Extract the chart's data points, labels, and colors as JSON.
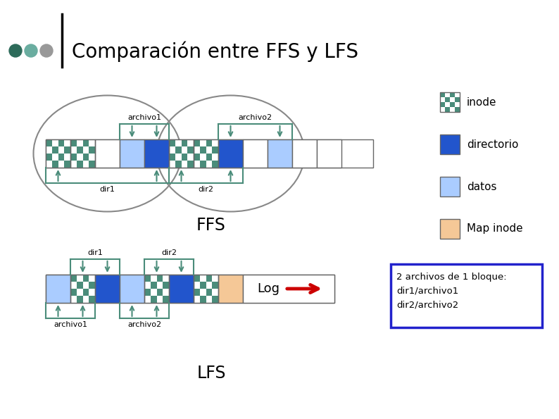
{
  "title": "Comparación entre FFS y LFS",
  "bg_color": "#ffffff",
  "title_color": "#000000",
  "title_fontsize": 20,
  "inode_c1": "#4a8c7a",
  "inode_c2": "#ffffff",
  "dir_color": "#2255cc",
  "datos_color": "#aaccff",
  "mapinode_color": "#f5c897",
  "bracket_color": "#4a8c7a",
  "ellipse_color": "#888888",
  "arrow_color": "#cc0000",
  "legend_items": [
    "inode",
    "directorio",
    "datos",
    "Map inode"
  ],
  "ffs_label": "FFS",
  "lfs_label": "LFS",
  "log_label": "Log",
  "info_text": "2 archivos de 1 bloque:\ndir1/archivo1\ndir2/archivo2",
  "dot_colors": [
    "#2d6b5a",
    "#6aada0",
    "#999999"
  ]
}
